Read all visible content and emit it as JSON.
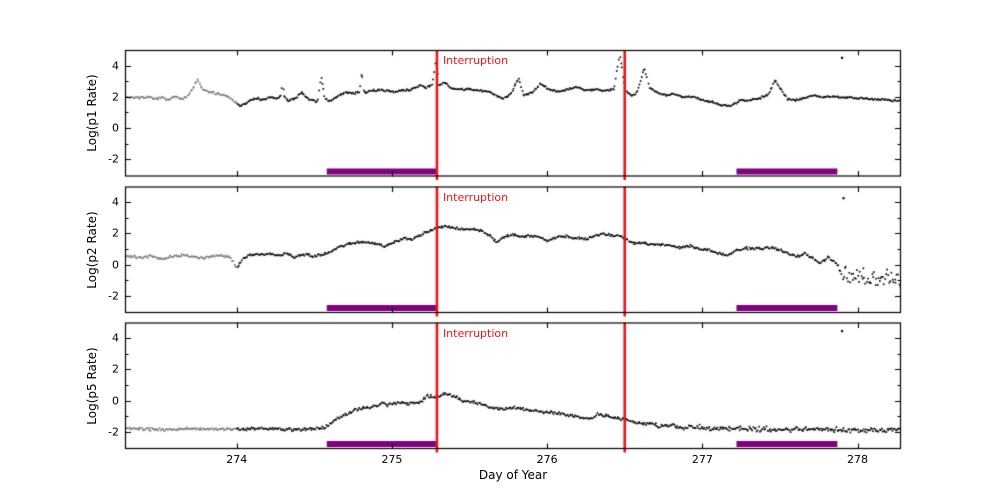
{
  "chart_data": {
    "type": "scatter",
    "title": "",
    "xlabel": "Day of Year",
    "xlim": [
      273.28,
      278.28
    ],
    "xticks": [
      274,
      275,
      276,
      277,
      278
    ],
    "xtick_labels": [
      "274",
      "275",
      "276",
      "277",
      "278"
    ],
    "ylim": [
      -3.1,
      5.0
    ],
    "yticks_major": [
      4,
      2,
      0,
      -2
    ],
    "yticks_minor": [
      3,
      1,
      -1
    ],
    "ytick_labels": [
      "4",
      "2",
      "0",
      "-2"
    ],
    "grid": false,
    "legend": null,
    "interruption": {
      "label": "Interruption",
      "lines_x": [
        275.29,
        276.5
      ]
    },
    "bars_x": [
      [
        274.58,
        275.29
      ],
      [
        277.22,
        277.87
      ]
    ],
    "gray_before_x": 274.0,
    "colors": {
      "point": "#0d0d0d",
      "gray_point": "#7d7d7d",
      "red": "#f01414",
      "purple": "#800080",
      "frame": "#000000",
      "background": "#ffffff"
    },
    "panels": [
      {
        "ylabel": "Log(p1 Rate)",
        "noise": 0.05,
        "noise_segments": [],
        "outliers": [
          [
            277.9,
            4.5
          ]
        ],
        "anchors": [
          [
            273.3,
            2.0
          ],
          [
            273.36,
            1.95
          ],
          [
            273.42,
            2.0
          ],
          [
            273.47,
            1.85
          ],
          [
            273.52,
            1.95
          ],
          [
            273.56,
            1.75
          ],
          [
            273.6,
            2.1
          ],
          [
            273.64,
            1.85
          ],
          [
            273.68,
            2.0
          ],
          [
            273.72,
            2.55
          ],
          [
            273.745,
            3.15
          ],
          [
            273.78,
            2.45
          ],
          [
            273.83,
            2.3
          ],
          [
            273.88,
            2.2
          ],
          [
            273.93,
            2.1
          ],
          [
            273.97,
            1.85
          ],
          [
            274.02,
            1.45
          ],
          [
            274.05,
            1.5
          ],
          [
            274.09,
            1.8
          ],
          [
            274.13,
            1.9
          ],
          [
            274.17,
            1.8
          ],
          [
            274.21,
            1.95
          ],
          [
            274.26,
            1.9
          ],
          [
            274.285,
            2.1
          ],
          [
            274.295,
            3.3
          ],
          [
            274.305,
            2.05
          ],
          [
            274.33,
            1.75
          ],
          [
            274.38,
            1.95
          ],
          [
            274.42,
            2.25
          ],
          [
            274.47,
            1.8
          ],
          [
            274.52,
            1.65
          ],
          [
            274.545,
            3.35
          ],
          [
            274.565,
            1.9
          ],
          [
            274.6,
            1.75
          ],
          [
            274.65,
            2.05
          ],
          [
            274.7,
            2.3
          ],
          [
            274.75,
            2.2
          ],
          [
            274.79,
            2.35
          ],
          [
            274.805,
            3.4
          ],
          [
            274.82,
            2.25
          ],
          [
            274.87,
            2.4
          ],
          [
            274.92,
            2.45
          ],
          [
            274.97,
            2.4
          ],
          [
            275.02,
            2.35
          ],
          [
            275.07,
            2.4
          ],
          [
            275.12,
            2.45
          ],
          [
            275.18,
            2.75
          ],
          [
            275.22,
            2.6
          ],
          [
            275.26,
            2.75
          ],
          [
            275.285,
            4.5
          ],
          [
            275.3,
            2.75
          ],
          [
            275.34,
            2.9
          ],
          [
            275.38,
            2.6
          ],
          [
            275.43,
            2.45
          ],
          [
            275.48,
            2.5
          ],
          [
            275.53,
            2.45
          ],
          [
            275.58,
            2.4
          ],
          [
            275.63,
            2.3
          ],
          [
            275.68,
            2.05
          ],
          [
            275.72,
            1.9
          ],
          [
            275.77,
            2.25
          ],
          [
            275.815,
            3.2
          ],
          [
            275.85,
            2.05
          ],
          [
            275.9,
            2.3
          ],
          [
            275.96,
            2.85
          ],
          [
            276.01,
            2.5
          ],
          [
            276.07,
            2.35
          ],
          [
            276.13,
            2.45
          ],
          [
            276.19,
            2.65
          ],
          [
            276.25,
            2.4
          ],
          [
            276.31,
            2.5
          ],
          [
            276.37,
            2.4
          ],
          [
            276.43,
            2.5
          ],
          [
            276.468,
            4.8
          ],
          [
            276.5,
            2.6
          ],
          [
            276.54,
            2.05
          ],
          [
            276.58,
            2.3
          ],
          [
            276.625,
            3.85
          ],
          [
            276.66,
            2.6
          ],
          [
            276.71,
            2.25
          ],
          [
            276.76,
            2.1
          ],
          [
            276.82,
            2.2
          ],
          [
            276.88,
            1.95
          ],
          [
            276.94,
            2.05
          ],
          [
            277.0,
            1.8
          ],
          [
            277.06,
            1.7
          ],
          [
            277.12,
            1.5
          ],
          [
            277.18,
            1.4
          ],
          [
            277.24,
            1.75
          ],
          [
            277.3,
            1.8
          ],
          [
            277.36,
            1.9
          ],
          [
            277.42,
            2.1
          ],
          [
            277.47,
            3.05
          ],
          [
            277.51,
            2.4
          ],
          [
            277.55,
            1.85
          ],
          [
            277.6,
            1.8
          ],
          [
            277.66,
            1.95
          ],
          [
            277.72,
            2.1
          ],
          [
            277.78,
            2.0
          ],
          [
            277.85,
            2.0
          ],
          [
            277.93,
            1.95
          ],
          [
            278.02,
            1.9
          ],
          [
            278.12,
            1.85
          ],
          [
            278.2,
            1.8
          ],
          [
            278.28,
            1.7
          ]
        ]
      },
      {
        "ylabel": "Log(p2 Rate)",
        "noise": 0.06,
        "noise_segments": [
          {
            "from": 277.88,
            "noise": 0.45
          }
        ],
        "outliers": [
          [
            277.91,
            4.25
          ]
        ],
        "anchors": [
          [
            273.3,
            0.55
          ],
          [
            273.38,
            0.45
          ],
          [
            273.45,
            0.55
          ],
          [
            273.52,
            0.35
          ],
          [
            273.58,
            0.55
          ],
          [
            273.65,
            0.6
          ],
          [
            273.72,
            0.5
          ],
          [
            273.78,
            0.4
          ],
          [
            273.84,
            0.55
          ],
          [
            273.9,
            0.6
          ],
          [
            273.96,
            0.5
          ],
          [
            274.0,
            -0.3
          ],
          [
            274.03,
            0.3
          ],
          [
            274.08,
            0.6
          ],
          [
            274.14,
            0.65
          ],
          [
            274.2,
            0.7
          ],
          [
            274.26,
            0.6
          ],
          [
            274.32,
            0.7
          ],
          [
            274.37,
            0.45
          ],
          [
            274.43,
            0.65
          ],
          [
            274.49,
            0.55
          ],
          [
            274.55,
            0.65
          ],
          [
            274.6,
            0.8
          ],
          [
            274.66,
            1.15
          ],
          [
            274.72,
            1.35
          ],
          [
            274.78,
            1.4
          ],
          [
            274.84,
            1.45
          ],
          [
            274.9,
            1.3
          ],
          [
            274.96,
            1.2
          ],
          [
            275.02,
            1.45
          ],
          [
            275.08,
            1.7
          ],
          [
            275.13,
            1.6
          ],
          [
            275.18,
            1.9
          ],
          [
            275.23,
            2.1
          ],
          [
            275.29,
            2.35
          ],
          [
            275.35,
            2.45
          ],
          [
            275.41,
            2.35
          ],
          [
            275.47,
            2.2
          ],
          [
            275.52,
            2.3
          ],
          [
            275.58,
            2.15
          ],
          [
            275.63,
            1.9
          ],
          [
            275.67,
            1.45
          ],
          [
            275.72,
            1.8
          ],
          [
            275.78,
            1.9
          ],
          [
            275.84,
            1.8
          ],
          [
            275.9,
            1.85
          ],
          [
            275.95,
            1.75
          ],
          [
            276.0,
            1.5
          ],
          [
            276.06,
            1.75
          ],
          [
            276.12,
            1.8
          ],
          [
            276.18,
            1.7
          ],
          [
            276.24,
            1.65
          ],
          [
            276.3,
            1.8
          ],
          [
            276.36,
            2.0
          ],
          [
            276.42,
            1.85
          ],
          [
            276.48,
            1.8
          ],
          [
            276.52,
            1.5
          ],
          [
            276.56,
            1.35
          ],
          [
            276.62,
            1.4
          ],
          [
            276.68,
            1.3
          ],
          [
            276.74,
            1.3
          ],
          [
            276.8,
            1.2
          ],
          [
            276.86,
            1.1
          ],
          [
            276.92,
            1.2
          ],
          [
            276.98,
            1.0
          ],
          [
            277.04,
            0.95
          ],
          [
            277.1,
            0.75
          ],
          [
            277.16,
            0.6
          ],
          [
            277.22,
            0.9
          ],
          [
            277.28,
            1.05
          ],
          [
            277.34,
            1.05
          ],
          [
            277.4,
            1.05
          ],
          [
            277.46,
            1.1
          ],
          [
            277.52,
            0.85
          ],
          [
            277.58,
            0.6
          ],
          [
            277.62,
            0.5
          ],
          [
            277.66,
            0.75
          ],
          [
            277.71,
            0.4
          ],
          [
            277.76,
            0.1
          ],
          [
            277.81,
            0.45
          ],
          [
            277.86,
            0.15
          ],
          [
            277.9,
            -0.55
          ],
          [
            277.96,
            -0.7
          ],
          [
            278.04,
            -0.8
          ],
          [
            278.12,
            -0.85
          ],
          [
            278.2,
            -0.9
          ],
          [
            278.28,
            -0.95
          ]
        ]
      },
      {
        "ylabel": "Log(p5 Rate)",
        "noise": 0.07,
        "noise_segments": [
          {
            "from": 276.7,
            "noise": 0.12
          }
        ],
        "outliers": [
          [
            277.9,
            4.45
          ]
        ],
        "anchors": [
          [
            273.3,
            -1.8
          ],
          [
            273.5,
            -1.85
          ],
          [
            273.7,
            -1.8
          ],
          [
            273.9,
            -1.85
          ],
          [
            274.1,
            -1.8
          ],
          [
            274.3,
            -1.85
          ],
          [
            274.45,
            -1.85
          ],
          [
            274.56,
            -1.75
          ],
          [
            274.61,
            -1.4
          ],
          [
            274.66,
            -1.05
          ],
          [
            274.71,
            -0.85
          ],
          [
            274.76,
            -0.6
          ],
          [
            274.81,
            -0.5
          ],
          [
            274.86,
            -0.4
          ],
          [
            274.91,
            -0.3
          ],
          [
            274.94,
            -0.12
          ],
          [
            274.97,
            -0.3
          ],
          [
            275.01,
            -0.2
          ],
          [
            275.06,
            -0.15
          ],
          [
            275.11,
            -0.22
          ],
          [
            275.15,
            -0.1
          ],
          [
            275.19,
            -0.08
          ],
          [
            275.23,
            0.35
          ],
          [
            275.27,
            0.2
          ],
          [
            275.31,
            0.3
          ],
          [
            275.34,
            0.45
          ],
          [
            275.38,
            0.4
          ],
          [
            275.43,
            0.1
          ],
          [
            275.47,
            -0.05
          ],
          [
            275.52,
            -0.1
          ],
          [
            275.57,
            -0.18
          ],
          [
            275.62,
            -0.42
          ],
          [
            275.67,
            -0.52
          ],
          [
            275.72,
            -0.55
          ],
          [
            275.77,
            -0.45
          ],
          [
            275.83,
            -0.52
          ],
          [
            275.89,
            -0.62
          ],
          [
            275.95,
            -0.7
          ],
          [
            276.01,
            -0.76
          ],
          [
            276.08,
            -0.82
          ],
          [
            276.15,
            -0.95
          ],
          [
            276.22,
            -1.08
          ],
          [
            276.28,
            -1.15
          ],
          [
            276.33,
            -0.85
          ],
          [
            276.39,
            -1.0
          ],
          [
            276.45,
            -1.12
          ],
          [
            276.5,
            -1.2
          ],
          [
            276.56,
            -1.4
          ],
          [
            276.62,
            -1.45
          ],
          [
            276.7,
            -1.55
          ],
          [
            276.8,
            -1.62
          ],
          [
            276.9,
            -1.7
          ],
          [
            277.0,
            -1.72
          ],
          [
            277.1,
            -1.78
          ],
          [
            277.25,
            -1.8
          ],
          [
            277.4,
            -1.82
          ],
          [
            277.55,
            -1.85
          ],
          [
            277.7,
            -1.85
          ],
          [
            277.85,
            -1.88
          ],
          [
            278.0,
            -1.88
          ],
          [
            278.1,
            -1.85
          ],
          [
            278.28,
            -1.9
          ]
        ]
      }
    ]
  }
}
